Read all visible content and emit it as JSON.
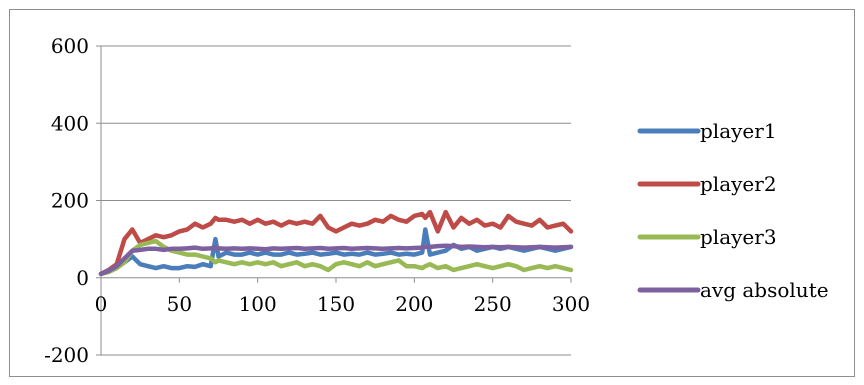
{
  "chart_data": {
    "type": "line",
    "title": "",
    "xlabel": "",
    "ylabel": "",
    "xlim": [
      0,
      300
    ],
    "ylim": [
      -200,
      600
    ],
    "x_ticks": [
      0,
      50,
      100,
      150,
      200,
      250,
      300
    ],
    "y_ticks": [
      -200,
      0,
      200,
      400,
      600
    ],
    "x_tick_labels": [
      "0",
      "50",
      "100",
      "150",
      "200",
      "250",
      "300"
    ],
    "y_tick_labels": [
      "-200",
      "0",
      "200",
      "400",
      "600"
    ],
    "grid": "horizontal",
    "legend": "right",
    "x": [
      0,
      5,
      10,
      15,
      20,
      25,
      30,
      35,
      40,
      45,
      50,
      55,
      60,
      65,
      70,
      73,
      75,
      80,
      85,
      90,
      95,
      100,
      105,
      110,
      115,
      120,
      125,
      130,
      135,
      140,
      145,
      150,
      155,
      160,
      165,
      170,
      175,
      180,
      185,
      190,
      195,
      200,
      205,
      207,
      210,
      215,
      220,
      225,
      230,
      235,
      240,
      245,
      250,
      255,
      260,
      265,
      270,
      275,
      280,
      285,
      290,
      295,
      300
    ],
    "series": [
      {
        "name": "player1",
        "color": "#4a7ebb",
        "values": [
          10,
          20,
          30,
          40,
          55,
          35,
          30,
          25,
          30,
          25,
          25,
          30,
          28,
          35,
          30,
          100,
          55,
          65,
          60,
          60,
          65,
          60,
          65,
          60,
          60,
          65,
          60,
          62,
          65,
          60,
          62,
          65,
          60,
          62,
          60,
          65,
          60,
          62,
          65,
          60,
          62,
          60,
          65,
          125,
          60,
          65,
          70,
          85,
          75,
          80,
          70,
          75,
          80,
          75,
          80,
          75,
          70,
          75,
          80,
          75,
          70,
          75,
          80
        ]
      },
      {
        "name": "player2",
        "color": "#be4b48",
        "values": [
          10,
          20,
          35,
          100,
          125,
          90,
          100,
          110,
          105,
          110,
          120,
          125,
          140,
          130,
          140,
          155,
          150,
          150,
          145,
          150,
          140,
          150,
          140,
          145,
          135,
          145,
          140,
          145,
          140,
          160,
          130,
          120,
          130,
          140,
          135,
          140,
          150,
          145,
          160,
          150,
          145,
          160,
          165,
          155,
          170,
          120,
          170,
          130,
          155,
          140,
          150,
          135,
          140,
          130,
          160,
          145,
          140,
          135,
          150,
          130,
          135,
          140,
          120
        ]
      },
      {
        "name": "player3",
        "color": "#98b954",
        "values": [
          10,
          15,
          25,
          40,
          70,
          85,
          90,
          95,
          80,
          70,
          65,
          60,
          60,
          55,
          50,
          40,
          45,
          40,
          35,
          40,
          35,
          40,
          35,
          40,
          30,
          35,
          40,
          30,
          35,
          30,
          20,
          35,
          40,
          35,
          30,
          40,
          30,
          35,
          40,
          45,
          30,
          30,
          25,
          30,
          35,
          25,
          30,
          20,
          25,
          30,
          35,
          30,
          25,
          30,
          35,
          30,
          20,
          25,
          30,
          25,
          30,
          25,
          20
        ]
      },
      {
        "name": "avg absolute",
        "color": "#7d60a0",
        "values": [
          10,
          18,
          30,
          50,
          70,
          72,
          75,
          75,
          72,
          75,
          75,
          76,
          78,
          75,
          76,
          78,
          76,
          75,
          76,
          75,
          76,
          75,
          74,
          76,
          75,
          76,
          77,
          75,
          76,
          77,
          75,
          76,
          77,
          75,
          76,
          77,
          76,
          75,
          76,
          77,
          76,
          77,
          78,
          80,
          80,
          82,
          83,
          82,
          80,
          81,
          80,
          79,
          80,
          79,
          80,
          79,
          78,
          79,
          80,
          79,
          78,
          79,
          80
        ]
      }
    ]
  }
}
